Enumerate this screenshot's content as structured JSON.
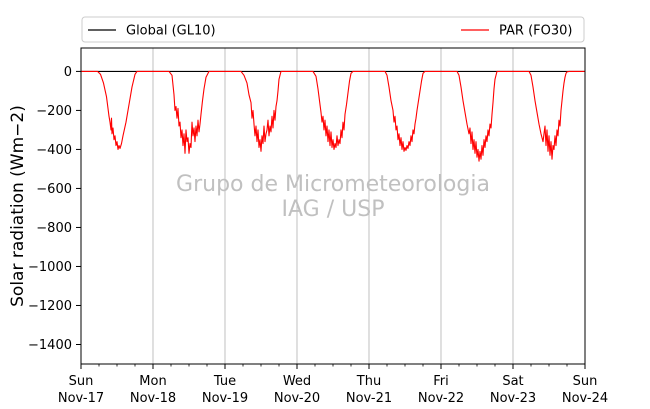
{
  "chart_data": {
    "type": "line",
    "title": "",
    "xlabel": "",
    "ylabel": "Solar radiation (Wm−2)",
    "ylim": [
      -1500,
      120
    ],
    "yticks": [
      0,
      -200,
      -400,
      -600,
      -800,
      -1000,
      -1200,
      -1400
    ],
    "xlim": [
      "2019-11-17",
      "2019-11-24"
    ],
    "xticks": [
      {
        "date": "2019-11-17",
        "day": "Sun",
        "label": "Nov-17"
      },
      {
        "date": "2019-11-18",
        "day": "Mon",
        "label": "Nov-18"
      },
      {
        "date": "2019-11-19",
        "day": "Tue",
        "label": "Nov-19"
      },
      {
        "date": "2019-11-20",
        "day": "Wed",
        "label": "Nov-20"
      },
      {
        "date": "2019-11-21",
        "day": "Thu",
        "label": "Nov-21"
      },
      {
        "date": "2019-11-22",
        "day": "Fri",
        "label": "Nov-22"
      },
      {
        "date": "2019-11-23",
        "day": "Sat",
        "label": "Nov-23"
      },
      {
        "date": "2019-11-24",
        "day": "Sun",
        "label": "Nov-24"
      }
    ],
    "grid": "vertical",
    "legend": "top",
    "watermark": [
      "Grupo de Micrometeorologia",
      "IAG / USP"
    ],
    "series": [
      {
        "name": "Global (GL10)",
        "color": "#000000",
        "x": [
          "2019-11-17 00:00",
          "2019-11-24 00:00"
        ],
        "y": [
          0,
          0
        ]
      },
      {
        "name": "PAR (FO30)",
        "color": "#ff0000",
        "x": [
          "2019-11-17 00:00",
          "2019-11-17 05:30",
          "2019-11-17 06:30",
          "2019-11-17 07:30",
          "2019-11-17 08:30",
          "2019-11-17 09:00",
          "2019-11-17 09:20",
          "2019-11-17 09:40",
          "2019-11-17 10:00",
          "2019-11-17 10:10",
          "2019-11-17 10:20",
          "2019-11-17 10:40",
          "2019-11-17 11:00",
          "2019-11-17 11:20",
          "2019-11-17 11:40",
          "2019-11-17 12:00",
          "2019-11-17 12:20",
          "2019-11-17 12:40",
          "2019-11-17 13:00",
          "2019-11-17 13:30",
          "2019-11-17 14:00",
          "2019-11-17 15:00",
          "2019-11-17 16:00",
          "2019-11-17 17:00",
          "2019-11-17 18:00",
          "2019-11-17 18:40",
          "2019-11-18 05:20",
          "2019-11-18 06:20",
          "2019-11-18 07:00",
          "2019-11-18 07:20",
          "2019-11-18 07:40",
          "2019-11-18 08:00",
          "2019-11-18 08:20",
          "2019-11-18 08:40",
          "2019-11-18 09:00",
          "2019-11-18 09:20",
          "2019-11-18 09:40",
          "2019-11-18 10:00",
          "2019-11-18 10:20",
          "2019-11-18 10:40",
          "2019-11-18 11:00",
          "2019-11-18 11:20",
          "2019-11-18 11:40",
          "2019-11-18 12:00",
          "2019-11-18 12:20",
          "2019-11-18 12:40",
          "2019-11-18 13:00",
          "2019-11-18 13:20",
          "2019-11-18 13:40",
          "2019-11-18 14:00",
          "2019-11-18 14:20",
          "2019-11-18 14:40",
          "2019-11-18 15:00",
          "2019-11-18 15:20",
          "2019-11-18 15:40",
          "2019-11-18 16:00",
          "2019-11-18 16:30",
          "2019-11-18 17:00",
          "2019-11-18 17:40",
          "2019-11-18 18:40",
          "2019-11-19 05:20",
          "2019-11-19 06:20",
          "2019-11-19 07:20",
          "2019-11-19 08:00",
          "2019-11-19 08:40",
          "2019-11-19 09:00",
          "2019-11-19 09:20",
          "2019-11-19 09:40",
          "2019-11-19 10:00",
          "2019-11-19 10:20",
          "2019-11-19 10:40",
          "2019-11-19 11:00",
          "2019-11-19 11:20",
          "2019-11-19 11:40",
          "2019-11-19 12:00",
          "2019-11-19 12:20",
          "2019-11-19 12:40",
          "2019-11-19 13:00",
          "2019-11-19 13:20",
          "2019-11-19 13:40",
          "2019-11-19 14:00",
          "2019-11-19 14:20",
          "2019-11-19 14:40",
          "2019-11-19 15:00",
          "2019-11-19 15:20",
          "2019-11-19 15:40",
          "2019-11-19 16:00",
          "2019-11-19 16:20",
          "2019-11-19 16:40",
          "2019-11-19 17:00",
          "2019-11-19 17:20",
          "2019-11-19 17:40",
          "2019-11-19 18:00",
          "2019-11-19 18:40",
          "2019-11-20 05:20",
          "2019-11-20 06:20",
          "2019-11-20 07:00",
          "2019-11-20 07:30",
          "2019-11-20 08:00",
          "2019-11-20 08:20",
          "2019-11-20 08:40",
          "2019-11-20 09:00",
          "2019-11-20 09:20",
          "2019-11-20 09:40",
          "2019-11-20 10:00",
          "2019-11-20 10:20",
          "2019-11-20 10:40",
          "2019-11-20 11:00",
          "2019-11-20 11:20",
          "2019-11-20 11:40",
          "2019-11-20 12:00",
          "2019-11-20 12:20",
          "2019-11-20 12:40",
          "2019-11-20 13:00",
          "2019-11-20 13:20",
          "2019-11-20 13:40",
          "2019-11-20 14:00",
          "2019-11-20 14:20",
          "2019-11-20 14:40",
          "2019-11-20 15:00",
          "2019-11-20 15:20",
          "2019-11-20 15:40",
          "2019-11-20 16:00",
          "2019-11-20 16:30",
          "2019-11-20 17:00",
          "2019-11-20 17:30",
          "2019-11-20 18:00",
          "2019-11-20 18:40",
          "2019-11-21 05:20",
          "2019-11-21 06:00",
          "2019-11-21 06:40",
          "2019-11-21 07:20",
          "2019-11-21 08:00",
          "2019-11-21 08:20",
          "2019-11-21 08:40",
          "2019-11-21 09:00",
          "2019-11-21 09:20",
          "2019-11-21 09:40",
          "2019-11-21 10:00",
          "2019-11-21 10:20",
          "2019-11-21 10:40",
          "2019-11-21 11:00",
          "2019-11-21 11:20",
          "2019-11-21 11:40",
          "2019-11-21 12:00",
          "2019-11-21 12:20",
          "2019-11-21 12:40",
          "2019-11-21 13:00",
          "2019-11-21 13:20",
          "2019-11-21 13:40",
          "2019-11-21 14:00",
          "2019-11-21 14:20",
          "2019-11-21 14:40",
          "2019-11-21 15:00",
          "2019-11-21 15:20",
          "2019-11-21 15:40",
          "2019-11-21 16:00",
          "2019-11-21 16:30",
          "2019-11-21 17:00",
          "2019-11-21 17:30",
          "2019-11-21 18:00",
          "2019-11-21 18:40",
          "2019-11-22 05:20",
          "2019-11-22 06:00",
          "2019-11-22 06:40",
          "2019-11-22 07:20",
          "2019-11-22 08:00",
          "2019-11-22 08:40",
          "2019-11-22 09:20",
          "2019-11-22 09:40",
          "2019-11-22 10:00",
          "2019-11-22 10:20",
          "2019-11-22 10:40",
          "2019-11-22 11:00",
          "2019-11-22 11:20",
          "2019-11-22 11:40",
          "2019-11-22 12:00",
          "2019-11-22 12:20",
          "2019-11-22 12:40",
          "2019-11-22 13:00",
          "2019-11-22 13:20",
          "2019-11-22 13:40",
          "2019-11-22 14:00",
          "2019-11-22 14:20",
          "2019-11-22 14:40",
          "2019-11-22 15:00",
          "2019-11-22 15:20",
          "2019-11-22 15:40",
          "2019-11-22 16:00",
          "2019-11-22 16:20",
          "2019-11-22 16:40",
          "2019-11-22 17:00",
          "2019-11-22 17:20",
          "2019-11-22 17:40",
          "2019-11-22 18:00",
          "2019-11-22 18:40",
          "2019-11-23 05:20",
          "2019-11-23 06:00",
          "2019-11-23 06:40",
          "2019-11-23 07:20",
          "2019-11-23 08:00",
          "2019-11-23 08:40",
          "2019-11-23 09:20",
          "2019-11-23 10:00",
          "2019-11-23 10:40",
          "2019-11-23 11:00",
          "2019-11-23 11:20",
          "2019-11-23 11:40",
          "2019-11-23 12:00",
          "2019-11-23 12:20",
          "2019-11-23 12:40",
          "2019-11-23 13:00",
          "2019-11-23 13:20",
          "2019-11-23 13:40",
          "2019-11-23 14:00",
          "2019-11-23 14:20",
          "2019-11-23 14:40",
          "2019-11-23 15:00",
          "2019-11-23 15:20",
          "2019-11-23 15:40",
          "2019-11-23 16:00",
          "2019-11-23 16:20",
          "2019-11-23 16:40",
          "2019-11-23 17:00",
          "2019-11-23 17:20",
          "2019-11-23 17:40",
          "2019-11-23 18:00",
          "2019-11-23 18:40",
          "2019-11-24 00:00"
        ],
        "y": [
          0,
          0,
          -15,
          -60,
          -130,
          -190,
          -230,
          -260,
          -300,
          -240,
          -320,
          -290,
          -350,
          -330,
          -380,
          -360,
          -400,
          -380,
          -395,
          -370,
          -330,
          -260,
          -170,
          -80,
          -15,
          0,
          0,
          -20,
          -120,
          -200,
          -180,
          -240,
          -190,
          -280,
          -260,
          -340,
          -300,
          -380,
          -320,
          -420,
          -300,
          -360,
          -340,
          -420,
          -370,
          -390,
          -260,
          -330,
          -290,
          -360,
          -280,
          -330,
          -250,
          -310,
          -270,
          -220,
          -150,
          -90,
          -30,
          0,
          0,
          -20,
          -60,
          -120,
          -160,
          -240,
          -200,
          -270,
          -330,
          -280,
          -360,
          -300,
          -390,
          -350,
          -410,
          -330,
          -370,
          -280,
          -360,
          -320,
          -300,
          -250,
          -330,
          -280,
          -310,
          -230,
          -290,
          -200,
          -250,
          -180,
          -150,
          -100,
          -40,
          0,
          0,
          -25,
          -90,
          -150,
          -210,
          -260,
          -230,
          -300,
          -250,
          -330,
          -280,
          -360,
          -300,
          -380,
          -310,
          -390,
          -350,
          -400,
          -370,
          -390,
          -330,
          -380,
          -350,
          -370,
          -300,
          -340,
          -260,
          -300,
          -220,
          -170,
          -110,
          -50,
          -10,
          0,
          0,
          -20,
          -80,
          -150,
          -200,
          -260,
          -230,
          -300,
          -280,
          -350,
          -320,
          -380,
          -340,
          -400,
          -360,
          -410,
          -390,
          -405,
          -380,
          -395,
          -360,
          -380,
          -330,
          -360,
          -300,
          -320,
          -270,
          -240,
          -200,
          -150,
          -100,
          -50,
          -10,
          0,
          0,
          -20,
          -80,
          -150,
          -210,
          -270,
          -320,
          -290,
          -370,
          -310,
          -400,
          -350,
          -420,
          -360,
          -440,
          -400,
          -460,
          -410,
          -450,
          -380,
          -430,
          -350,
          -390,
          -330,
          -360,
          -300,
          -330,
          -270,
          -290,
          -220,
          -160,
          -90,
          -40,
          0,
          0,
          -20,
          -80,
          -150,
          -210,
          -270,
          -320,
          -360,
          -280,
          -380,
          -300,
          -410,
          -330,
          -430,
          -360,
          -450,
          -380,
          -400,
          -330,
          -380,
          -300,
          -330,
          -250,
          -280,
          -200,
          -150,
          -100,
          -60,
          -30,
          -10,
          -2,
          0,
          0
        ]
      }
    ]
  }
}
